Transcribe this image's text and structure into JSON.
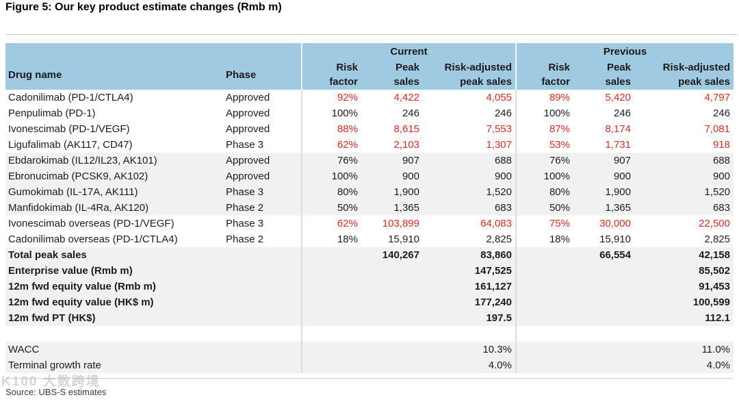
{
  "figure_title": "Figure 5: Our key product estimate changes (Rmb m)",
  "colors": {
    "header_bg": "#9fcae1",
    "stripe": "#f1f1f1",
    "highlight_red": "#d92b21"
  },
  "table": {
    "section_headers": {
      "current": "Current",
      "previous": "Previous"
    },
    "column_headers": {
      "drug": "Drug name",
      "phase": "Phase",
      "risk_factor": "Risk\nfactor",
      "peak_sales": "Peak\nsales",
      "risk_adjusted": "Risk-adjusted\npeak sales"
    },
    "drug_rows": [
      {
        "name": "Cadonilimab (PD-1/CTLA4)",
        "phase": "Approved",
        "values": [
          "92%",
          "4,422",
          "4,055",
          "89%",
          "5,420",
          "4,797"
        ],
        "red": true,
        "shaded": false
      },
      {
        "name": "Penpulimab (PD-1)",
        "phase": "Approved",
        "values": [
          "100%",
          "246",
          "246",
          "100%",
          "246",
          "246"
        ],
        "red": false,
        "shaded": false
      },
      {
        "name": "Ivonescimab (PD-1/VEGF)",
        "phase": "Approved",
        "values": [
          "88%",
          "8,615",
          "7,553",
          "87%",
          "8,174",
          "7,081"
        ],
        "red": true,
        "shaded": false
      },
      {
        "name": "Ligufalimab (AK117, CD47)",
        "phase": "Phase 3",
        "values": [
          "62%",
          "2,103",
          "1,307",
          "53%",
          "1,731",
          "918"
        ],
        "red": true,
        "shaded": false
      },
      {
        "name": "Ebdarokimab (IL12/IL23, AK101)",
        "phase": "Approved",
        "values": [
          "76%",
          "907",
          "688",
          "76%",
          "907",
          "688"
        ],
        "red": false,
        "shaded": true
      },
      {
        "name": "Ebronucimab (PCSK9, AK102)",
        "phase": "Approved",
        "values": [
          "100%",
          "900",
          "900",
          "100%",
          "900",
          "900"
        ],
        "red": false,
        "shaded": true
      },
      {
        "name": "Gumokimab (IL-17A, AK111)",
        "phase": "Phase 3",
        "values": [
          "80%",
          "1,900",
          "1,520",
          "80%",
          "1,900",
          "1,520"
        ],
        "red": false,
        "shaded": true
      },
      {
        "name": "Manfidokimab (IL-4Ra, AK120)",
        "phase": "Phase 2",
        "values": [
          "50%",
          "1,365",
          "683",
          "50%",
          "1,365",
          "683"
        ],
        "red": false,
        "shaded": true
      },
      {
        "name": "Ivonescimab overseas (PD-1/VEGF)",
        "phase": "Phase 3",
        "values": [
          "62%",
          "103,899",
          "64,083",
          "75%",
          "30,000",
          "22,500"
        ],
        "red": true,
        "shaded": false
      },
      {
        "name": "Cadonilimab overseas (PD-1/CTLA4)",
        "phase": "Phase 2",
        "values": [
          "18%",
          "15,910",
          "2,825",
          "18%",
          "15,910",
          "2,825"
        ],
        "red": false,
        "shaded": false
      }
    ],
    "summary_rows": [
      {
        "label": "Total peak sales",
        "values": [
          "",
          "140,267",
          "83,860",
          "",
          "66,554",
          "42,158"
        ],
        "bold": true,
        "shaded": true
      },
      {
        "label": "Enterprise value (Rmb m)",
        "values": [
          "",
          "",
          "147,525",
          "",
          "",
          "85,502"
        ],
        "bold": true,
        "shaded": true
      },
      {
        "label": "12m fwd equity value (Rmb m)",
        "values": [
          "",
          "",
          "161,127",
          "",
          "",
          "91,453"
        ],
        "bold": true,
        "shaded": true
      },
      {
        "label": "12m fwd equity value (HK$ m)",
        "values": [
          "",
          "",
          "177,240",
          "",
          "",
          "100,599"
        ],
        "bold": true,
        "shaded": true
      },
      {
        "label": "12m fwd PT (HK$)",
        "values": [
          "",
          "",
          "197.5",
          "",
          "",
          "112.1"
        ],
        "bold": true,
        "shaded": true
      },
      {
        "label": "",
        "values": [
          "",
          "",
          "",
          "",
          "",
          ""
        ],
        "bold": false,
        "shaded": false
      },
      {
        "label": "WACC",
        "values": [
          "",
          "",
          "10.3%",
          "",
          "",
          "11.0%"
        ],
        "bold": false,
        "shaded": true
      },
      {
        "label": "Terminal growth rate",
        "values": [
          "",
          "",
          "4.0%",
          "",
          "",
          "4.0%"
        ],
        "bold": false,
        "shaded": true
      }
    ]
  },
  "footer": {
    "source": "Source: UBS-S estimates",
    "watermark": "K100 大数跨境"
  }
}
